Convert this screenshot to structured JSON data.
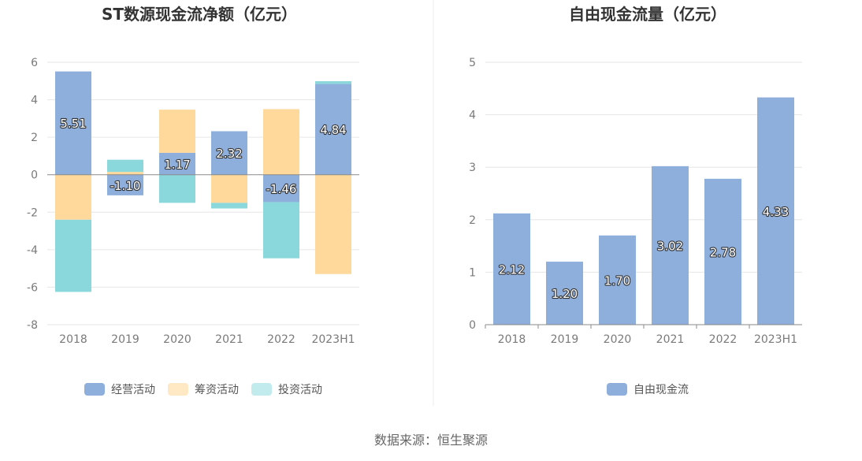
{
  "chart_data": [
    {
      "type": "bar",
      "stacked": true,
      "title": "ST数源现金流净额（亿元）",
      "categories": [
        "2018",
        "2019",
        "2020",
        "2021",
        "2022",
        "2023H1"
      ],
      "ylim": [
        -8,
        6
      ],
      "yticks": [
        6,
        4,
        2,
        0,
        -2,
        -4,
        -6,
        -8
      ],
      "series": [
        {
          "name": "经营活动",
          "color": "#8eaedb",
          "values": [
            5.51,
            -1.1,
            1.17,
            2.32,
            -1.46,
            4.84
          ]
        },
        {
          "name": "筹资活动",
          "color": "#ffd99b",
          "values": [
            -2.4,
            0.15,
            2.3,
            -1.5,
            3.5,
            -5.3
          ]
        },
        {
          "name": "投资活动",
          "color": "#8ad7dc",
          "values": [
            -3.85,
            0.65,
            -1.5,
            -0.3,
            -3.0,
            0.15
          ]
        }
      ],
      "data_labels": [
        "5.51",
        "-1.10",
        "1.17",
        "2.32",
        "-1.46",
        "4.84"
      ],
      "legend": {
        "position": "bottom",
        "items": [
          "经营活动",
          "筹资活动",
          "投资活动"
        ],
        "colors": [
          "#8eaedb",
          "#ffe8c4",
          "#c2ebee"
        ]
      }
    },
    {
      "type": "bar",
      "title": "自由现金流量（亿元）",
      "categories": [
        "2018",
        "2019",
        "2020",
        "2021",
        "2022",
        "2023H1"
      ],
      "ylim": [
        0,
        5
      ],
      "yticks": [
        5,
        4,
        3,
        2,
        1,
        0
      ],
      "series": [
        {
          "name": "自由现金流",
          "color": "#8eaedb",
          "values": [
            2.12,
            1.2,
            1.7,
            3.02,
            2.78,
            4.33
          ]
        }
      ],
      "data_labels": [
        "2.12",
        "1.20",
        "1.70",
        "3.02",
        "2.78",
        "4.33"
      ],
      "legend": {
        "position": "bottom",
        "items": [
          "自由现金流"
        ],
        "colors": [
          "#8eaedb"
        ]
      }
    }
  ],
  "source": "数据来源：恒生聚源"
}
